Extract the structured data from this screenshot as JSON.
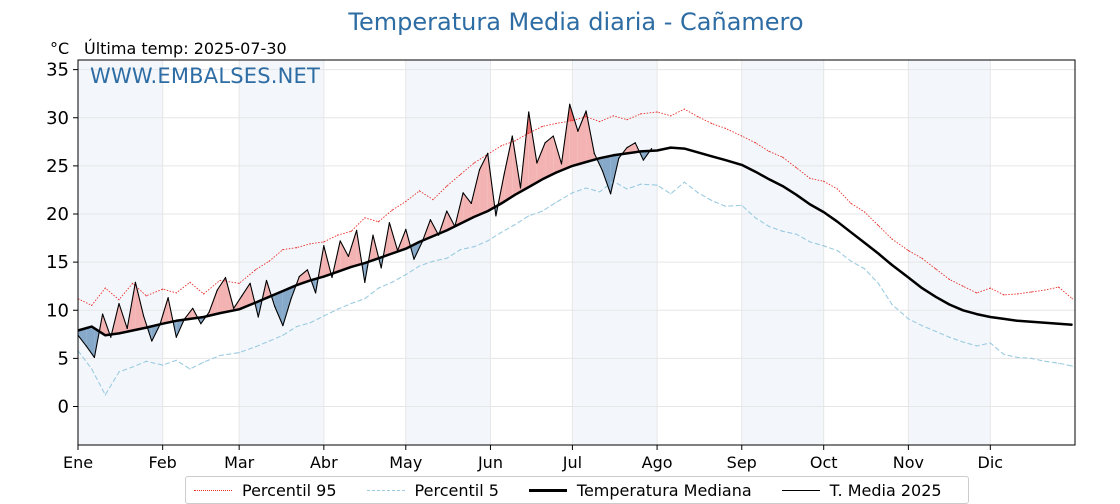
{
  "header": {
    "title": "Temperatura Media diaria - Cañamero",
    "unit": "°C",
    "last_temp_label": "Última temp: 2025-07-30",
    "watermark": "WWW.EMBALSES.NET"
  },
  "legend": {
    "p95": "Percentil 95",
    "p5": "Percentil 5",
    "median": "Temperatura Mediana",
    "year": "T. Media 2025"
  },
  "colors": {
    "title": "#2e6da4",
    "p95": "#e8302a",
    "p5": "#9ccbe0",
    "median": "#000000",
    "year": "#000000",
    "above_fill": "#f4b3b3",
    "above_strong_fill": "#e86d6d",
    "below_fill": "#87a9c9",
    "month_band": "#f3f7fc",
    "grid": "#e6e6e6"
  },
  "chart_data": {
    "type": "line",
    "title": "Temperatura Media diaria - Cañamero",
    "ylabel": "°C",
    "ylim": [
      -4,
      36
    ],
    "yticks": [
      0,
      5,
      10,
      15,
      20,
      25,
      30,
      35
    ],
    "xlim": [
      0,
      365
    ],
    "x_ticks": [
      {
        "label": "Ene",
        "day": 0
      },
      {
        "label": "Feb",
        "day": 31
      },
      {
        "label": "Mar",
        "day": 59
      },
      {
        "label": "Abr",
        "day": 90
      },
      {
        "label": "May",
        "day": 120
      },
      {
        "label": "Jun",
        "day": 151
      },
      {
        "label": "Jul",
        "day": 181
      },
      {
        "label": "Ago",
        "day": 212
      },
      {
        "label": "Sep",
        "day": 243
      },
      {
        "label": "Oct",
        "day": 273
      },
      {
        "label": "Nov",
        "day": 304
      },
      {
        "label": "Dic",
        "day": 334
      }
    ],
    "grid": true,
    "legend_position": "bottom",
    "series": [
      {
        "name": "Percentil 95",
        "style": "dotted",
        "x": [
          0,
          5,
          10,
          15,
          20,
          25,
          31,
          36,
          41,
          46,
          52,
          59,
          65,
          70,
          75,
          80,
          85,
          90,
          95,
          100,
          105,
          110,
          115,
          120,
          125,
          130,
          135,
          140,
          145,
          150,
          155,
          160,
          165,
          170,
          175,
          181,
          186,
          191,
          196,
          201,
          206,
          212,
          217,
          222,
          227,
          232,
          237,
          243,
          248,
          253,
          258,
          263,
          268,
          273,
          278,
          283,
          288,
          293,
          298,
          304,
          309,
          314,
          319,
          324,
          329,
          334,
          339,
          344,
          349,
          354,
          359,
          364
        ],
        "values": [
          11.2,
          10.5,
          12.3,
          11.1,
          12.8,
          11.5,
          12.2,
          11.8,
          12.9,
          11.7,
          13.1,
          12.8,
          14.2,
          15.1,
          16.3,
          16.5,
          16.9,
          17.1,
          17.8,
          18.2,
          19.6,
          19.2,
          20.4,
          21.3,
          22.4,
          21.5,
          22.9,
          24.1,
          25.3,
          26.2,
          27.1,
          27.6,
          28.4,
          29.1,
          29.4,
          29.7,
          30.1,
          29.6,
          30.2,
          29.8,
          30.4,
          30.6,
          30.2,
          30.9,
          30.1,
          29.4,
          28.9,
          28.1,
          27.4,
          26.5,
          25.9,
          24.8,
          23.7,
          23.4,
          22.6,
          21.1,
          20.2,
          18.8,
          17.4,
          16.2,
          15.4,
          14.3,
          13.2,
          12.5,
          11.8,
          12.3,
          11.6,
          11.7,
          11.9,
          12.1,
          12.4,
          11.2
        ]
      },
      {
        "name": "Percentil 5",
        "style": "dashed",
        "x": [
          0,
          5,
          10,
          15,
          20,
          25,
          31,
          36,
          41,
          46,
          52,
          59,
          65,
          70,
          75,
          80,
          85,
          90,
          95,
          100,
          105,
          110,
          115,
          120,
          125,
          130,
          135,
          140,
          145,
          150,
          155,
          160,
          165,
          170,
          175,
          181,
          186,
          191,
          196,
          201,
          206,
          212,
          217,
          222,
          227,
          232,
          237,
          243,
          248,
          253,
          258,
          263,
          268,
          273,
          278,
          283,
          288,
          293,
          298,
          304,
          309,
          314,
          319,
          324,
          329,
          334,
          339,
          344,
          349,
          354,
          359,
          364
        ],
        "values": [
          5.8,
          3.9,
          1.2,
          3.6,
          4.1,
          4.7,
          4.3,
          4.8,
          3.9,
          4.6,
          5.3,
          5.6,
          6.2,
          6.8,
          7.4,
          8.3,
          8.7,
          9.4,
          10.1,
          10.7,
          11.2,
          12.3,
          12.9,
          13.7,
          14.6,
          15.1,
          15.4,
          16.3,
          16.6,
          17.2,
          18.1,
          18.9,
          19.8,
          20.3,
          21.2,
          22.2,
          22.7,
          22.3,
          23.4,
          22.6,
          23.1,
          23.0,
          22.1,
          23.3,
          22.2,
          21.4,
          20.8,
          20.9,
          19.6,
          18.7,
          18.2,
          17.9,
          17.1,
          16.7,
          16.2,
          15.1,
          14.3,
          12.8,
          10.6,
          9.1,
          8.4,
          7.8,
          7.2,
          6.7,
          6.3,
          6.6,
          5.4,
          5.1,
          5.0,
          4.7,
          4.5,
          4.2
        ]
      },
      {
        "name": "Temperatura Mediana",
        "style": "solid-thick",
        "x": [
          0,
          5,
          10,
          15,
          20,
          25,
          31,
          36,
          41,
          46,
          52,
          59,
          65,
          70,
          75,
          80,
          85,
          90,
          95,
          100,
          105,
          110,
          115,
          120,
          125,
          130,
          135,
          140,
          145,
          150,
          155,
          160,
          165,
          170,
          175,
          181,
          186,
          191,
          196,
          201,
          206,
          212,
          217,
          222,
          227,
          232,
          237,
          243,
          248,
          253,
          258,
          263,
          268,
          273,
          278,
          283,
          288,
          293,
          298,
          304,
          309,
          314,
          319,
          324,
          329,
          334,
          339,
          344,
          349,
          354,
          359,
          364
        ],
        "values": [
          7.9,
          8.3,
          7.4,
          7.6,
          7.9,
          8.2,
          8.6,
          8.9,
          9.1,
          9.3,
          9.7,
          10.1,
          10.8,
          11.4,
          12.0,
          12.6,
          13.1,
          13.5,
          14.0,
          14.5,
          14.9,
          15.4,
          15.9,
          16.4,
          17.1,
          17.7,
          18.3,
          19.0,
          19.7,
          20.3,
          21.1,
          22.0,
          22.8,
          23.6,
          24.3,
          25.0,
          25.4,
          25.8,
          26.1,
          26.3,
          26.5,
          26.6,
          26.9,
          26.8,
          26.4,
          26.0,
          25.6,
          25.1,
          24.4,
          23.6,
          22.9,
          22.0,
          21.0,
          20.2,
          19.2,
          18.1,
          17.0,
          15.9,
          14.7,
          13.4,
          12.3,
          11.4,
          10.6,
          10.0,
          9.6,
          9.3,
          9.1,
          8.9,
          8.8,
          8.7,
          8.6,
          8.5
        ]
      },
      {
        "name": "T. Media 2025",
        "style": "solid-thin",
        "x": [
          0,
          3,
          6,
          9,
          12,
          15,
          18,
          21,
          24,
          27,
          30,
          33,
          36,
          39,
          42,
          45,
          48,
          51,
          54,
          57,
          60,
          63,
          66,
          69,
          72,
          75,
          78,
          81,
          84,
          87,
          90,
          93,
          96,
          99,
          102,
          105,
          108,
          111,
          114,
          117,
          120,
          123,
          126,
          129,
          132,
          135,
          138,
          141,
          144,
          147,
          150,
          153,
          156,
          159,
          162,
          165,
          168,
          171,
          174,
          177,
          180,
          183,
          186,
          189,
          192,
          195,
          198,
          201,
          204,
          207,
          210
        ],
        "values": [
          7.4,
          6.3,
          5.1,
          9.6,
          7.2,
          10.7,
          8.1,
          12.9,
          9.4,
          6.8,
          8.5,
          11.3,
          7.2,
          9.1,
          10.2,
          8.6,
          9.8,
          12.1,
          13.4,
          10.2,
          11.5,
          12.8,
          9.3,
          13.1,
          10.4,
          8.4,
          11.2,
          13.5,
          14.2,
          11.8,
          16.7,
          13.4,
          17.2,
          15.6,
          18.3,
          12.9,
          17.8,
          14.4,
          19.1,
          16.2,
          18.4,
          15.3,
          17.1,
          19.4,
          17.8,
          20.3,
          18.7,
          22.2,
          21.1,
          24.6,
          26.3,
          19.8,
          24.1,
          28.1,
          22.7,
          30.6,
          25.3,
          27.4,
          28.1,
          25.2,
          31.4,
          28.6,
          30.7,
          26.3,
          24.5,
          22.1,
          25.8,
          26.9,
          27.4,
          25.6,
          26.8
        ]
      }
    ]
  }
}
